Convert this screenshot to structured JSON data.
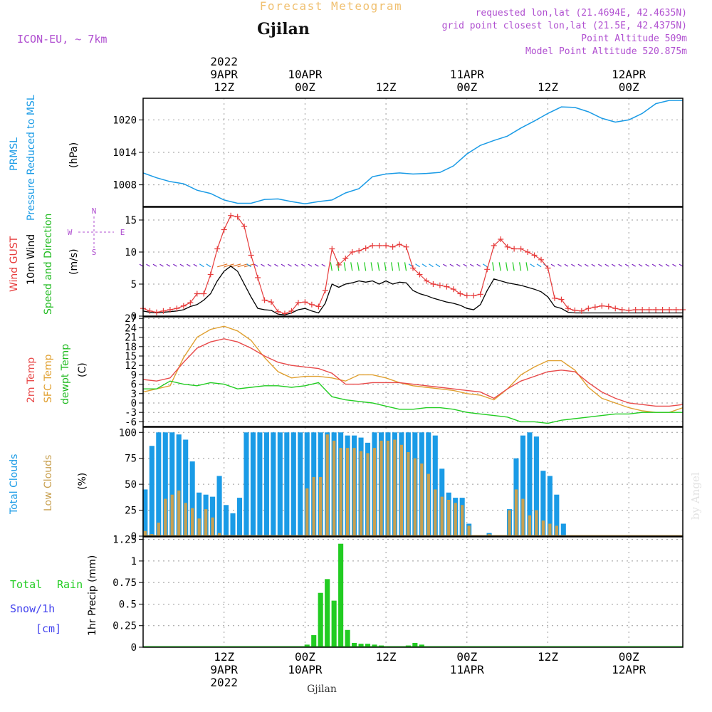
{
  "header": {
    "title": "Forecast Meteogram",
    "location": "Gjilan",
    "model": "ICON-EU, ~ 7km",
    "requested": "requested lon,lat (21.4694E, 42.4635N)",
    "gridpoint": "grid point closest lon,lat (21.5E, 42.4375N)",
    "point_altitude": "Point Altitude 509m",
    "model_altitude": "Model Point Altitude 520.875m",
    "footer_location": "Gjilan",
    "watermark": "by Angel"
  },
  "time_axis": {
    "top_ticks": [
      {
        "t": 12,
        "lines": [
          "2022",
          "9APR",
          "12Z"
        ]
      },
      {
        "t": 24,
        "lines": [
          "10APR",
          "00Z"
        ]
      },
      {
        "t": 36,
        "lines": [
          "12Z"
        ]
      },
      {
        "t": 48,
        "lines": [
          "11APR",
          "00Z"
        ]
      },
      {
        "t": 60,
        "lines": [
          "12Z"
        ]
      },
      {
        "t": 72,
        "lines": [
          "12APR",
          "00Z"
        ]
      }
    ],
    "bottom_ticks": [
      {
        "t": 12,
        "lines": [
          "12Z",
          "9APR",
          "2022"
        ]
      },
      {
        "t": 24,
        "lines": [
          "00Z",
          "10APR"
        ]
      },
      {
        "t": 36,
        "lines": [
          "12Z"
        ]
      },
      {
        "t": 48,
        "lines": [
          "00Z",
          "11APR"
        ]
      },
      {
        "t": 60,
        "lines": [
          "12Z"
        ]
      },
      {
        "t": 72,
        "lines": [
          "00Z",
          "12APR"
        ]
      }
    ]
  },
  "colors": {
    "pressure": "#1a9be6",
    "gust": "#e63b3b",
    "wind": "#000000",
    "direction_label": "#22bb22",
    "temp2m": "#e84a4a",
    "sfc": "#e0a030",
    "dewpt": "#22cc22",
    "total_clouds": "#1a9be6",
    "low_clouds": "#c8a050",
    "rain": "#22cc22",
    "snow": "#4444ee",
    "purple": "#b050d0",
    "orange_title": "#f0c070"
  },
  "panels": {
    "pressure": {
      "label1": "PRMSL",
      "label2": "Pressure Reduced to MSL",
      "unit": "(hPa)",
      "yticks": [
        "1008",
        "1014",
        "1020"
      ]
    },
    "wind": {
      "label1": "Wind GUST",
      "label2": "10m Wind",
      "label3": "Speed and Direction",
      "unit": "(m/s)",
      "yticks": [
        "0",
        "5",
        "10",
        "15"
      ],
      "compass": {
        "n": "N",
        "s": "S",
        "w": "W",
        "e": "E"
      }
    },
    "temp": {
      "label1": "2m Temp",
      "label2": "SFC Temp",
      "label3": "dewpt Temp",
      "unit": "(C)",
      "yticks": [
        "-6",
        "-3",
        "0",
        "3",
        "6",
        "9",
        "12",
        "15",
        "18",
        "21",
        "24",
        "27"
      ]
    },
    "clouds": {
      "label1": "Total Clouds",
      "label2": "Low Clouds",
      "unit": "(%)",
      "yticks": [
        "0",
        "25",
        "50",
        "75",
        "100"
      ]
    },
    "precip": {
      "label1": "Total",
      "label1b": "Rain",
      "label2": "Snow/1h",
      "label3": "[cm]",
      "unit": "1hr Precip (mm)",
      "yticks": [
        "0",
        "0.25",
        "0.5",
        "0.75",
        "1",
        "1.25"
      ]
    }
  },
  "chart_data": [
    {
      "type": "line",
      "name": "prmsl",
      "ylabel": "Pressure Reduced to MSL (hPa)",
      "ylim": [
        1004,
        1024
      ],
      "x_hours_from_9APR_00Z": [
        0,
        2,
        4,
        6,
        8,
        10,
        12,
        14,
        16,
        18,
        20,
        22,
        24,
        26,
        28,
        30,
        32,
        34,
        36,
        38,
        40,
        42,
        44,
        46,
        48,
        50,
        52,
        54,
        56,
        58,
        60,
        62,
        64,
        66,
        68,
        70,
        72,
        74,
        76,
        78,
        80
      ],
      "series": [
        {
          "values": [
            1010.2,
            1009.3,
            1008.6,
            1008.2,
            1007.0,
            1006.4,
            1005.2,
            1004.6,
            1004.6,
            1005.3,
            1005.4,
            1004.9,
            1004.5,
            1004.9,
            1005.2,
            1006.5,
            1007.3,
            1009.5,
            1010.0,
            1010.2,
            1010.0,
            1010.1,
            1010.3,
            1011.5,
            1013.7,
            1015.3,
            1016.2,
            1017.0,
            1018.5,
            1019.8,
            1021.2,
            1022.4,
            1022.3,
            1021.5,
            1020.3,
            1019.6,
            1020.0,
            1021.2,
            1023.0,
            1023.6,
            1023.6
          ]
        }
      ]
    },
    {
      "type": "line",
      "name": "wind",
      "ylabel": "(m/s)",
      "ylim": [
        0,
        17
      ],
      "x_hours_from_9APR_00Z": [
        0,
        1,
        2,
        3,
        4,
        5,
        6,
        7,
        8,
        9,
        10,
        11,
        12,
        13,
        14,
        15,
        16,
        17,
        18,
        19,
        20,
        21,
        22,
        23,
        24,
        25,
        26,
        27,
        28,
        29,
        30,
        31,
        32,
        33,
        34,
        35,
        36,
        37,
        38,
        39,
        40,
        41,
        42,
        43,
        44,
        45,
        46,
        47,
        48,
        49,
        50,
        51,
        52,
        53,
        54,
        55,
        56,
        57,
        58,
        59,
        60,
        61,
        62,
        63,
        64,
        65,
        66,
        67,
        68,
        69,
        70,
        71,
        72,
        73,
        74,
        75,
        76,
        77,
        78,
        79,
        80
      ],
      "series": [
        {
          "name": "Wind GUST",
          "values": [
            1.2,
            0.8,
            0.6,
            0.8,
            1.0,
            1.2,
            1.6,
            2.1,
            3.5,
            3.5,
            6.5,
            10.5,
            13.5,
            15.7,
            15.5,
            14.0,
            9.5,
            6.0,
            2.5,
            2.2,
            0.7,
            0.4,
            0.8,
            2.1,
            2.2,
            1.8,
            1.5,
            4.0,
            10.5,
            8.0,
            9.0,
            10.0,
            10.2,
            10.6,
            11.0,
            11.0,
            11.0,
            10.8,
            11.2,
            10.8,
            7.5,
            6.5,
            5.5,
            5.0,
            4.8,
            4.6,
            4.2,
            3.5,
            3.2,
            3.2,
            3.4,
            7.3,
            11.0,
            12.0,
            10.8,
            10.5,
            10.5,
            10.0,
            9.5,
            8.8,
            7.5,
            2.8,
            2.6,
            1.2,
            0.9,
            0.8,
            1.2,
            1.4,
            1.6,
            1.5,
            1.2,
            1.0,
            0.9,
            1.0,
            1.0,
            1.0,
            1.0,
            1.0,
            1.0,
            1.0,
            1.0
          ]
        },
        {
          "name": "10m Wind",
          "values": [
            0.8,
            0.6,
            0.5,
            0.6,
            0.7,
            0.8,
            1.0,
            1.5,
            1.8,
            2.5,
            3.5,
            5.5,
            7.0,
            7.8,
            7.0,
            5.0,
            3.0,
            1.2,
            1.0,
            0.9,
            0.3,
            0.2,
            0.5,
            1.0,
            1.2,
            0.8,
            0.5,
            2.0,
            5.0,
            4.5,
            5.0,
            5.2,
            5.5,
            5.3,
            5.5,
            5.0,
            5.5,
            5.0,
            5.3,
            5.2,
            4.0,
            3.5,
            3.2,
            2.8,
            2.5,
            2.2,
            2.0,
            1.7,
            1.2,
            1.0,
            1.8,
            4.0,
            5.8,
            5.5,
            5.2,
            5.0,
            4.8,
            4.5,
            4.2,
            3.8,
            3.0,
            1.5,
            1.2,
            0.6,
            0.5,
            0.5,
            0.5,
            0.5,
            0.5,
            0.5,
            0.5,
            0.5,
            0.5,
            0.5,
            0.5,
            0.5,
            0.5,
            0.5,
            0.5,
            0.5,
            0.5
          ]
        }
      ]
    },
    {
      "type": "line",
      "name": "temperature",
      "ylabel": "(C)",
      "ylim": [
        -7.5,
        27.5
      ],
      "x_hours_from_9APR_00Z": [
        0,
        2,
        4,
        6,
        8,
        10,
        12,
        14,
        16,
        18,
        20,
        22,
        24,
        26,
        28,
        30,
        32,
        34,
        36,
        38,
        40,
        42,
        44,
        46,
        48,
        50,
        52,
        54,
        56,
        58,
        60,
        62,
        64,
        66,
        68,
        70,
        72,
        74,
        76,
        78,
        80
      ],
      "series": [
        {
          "name": "2m Temp",
          "values": [
            7.5,
            7.0,
            8.0,
            13.0,
            17.5,
            19.5,
            20.5,
            19.5,
            17.5,
            15.0,
            13.0,
            12.0,
            11.5,
            11.0,
            9.5,
            6.0,
            6.0,
            6.5,
            6.5,
            6.5,
            6.0,
            5.5,
            5.0,
            4.5,
            4.0,
            3.5,
            1.5,
            4.5,
            7.0,
            8.5,
            10.0,
            10.5,
            10.0,
            6.5,
            3.5,
            1.5,
            0.0,
            -0.5,
            -1.0,
            -1.0,
            -0.5
          ]
        },
        {
          "name": "SFC Temp",
          "values": [
            3.5,
            4.5,
            5.5,
            14.5,
            21.0,
            23.5,
            24.5,
            23.0,
            20.0,
            14.5,
            10.0,
            8.0,
            8.5,
            8.5,
            8.0,
            7.0,
            9.0,
            9.0,
            8.0,
            6.5,
            5.5,
            5.0,
            4.5,
            4.0,
            3.0,
            2.5,
            1.0,
            4.5,
            9.0,
            11.5,
            13.5,
            13.5,
            10.5,
            5.0,
            1.5,
            0.0,
            -1.5,
            -2.5,
            -3.0,
            -3.0,
            -1.5
          ]
        },
        {
          "name": "dewpt Temp",
          "values": [
            4.5,
            4.5,
            7.0,
            6.0,
            5.5,
            6.5,
            6.0,
            4.5,
            5.0,
            5.5,
            5.5,
            5.0,
            5.5,
            6.5,
            2.0,
            1.0,
            0.5,
            0.0,
            -1.0,
            -2.0,
            -2.0,
            -1.5,
            -1.5,
            -2.0,
            -3.0,
            -3.5,
            -4.0,
            -4.5,
            -6.0,
            -6.0,
            -6.5,
            -5.5,
            -5.0,
            -4.5,
            -4.0,
            -3.5,
            -3.5,
            -3.0,
            -3.0,
            -3.0,
            -3.0
          ]
        }
      ]
    },
    {
      "type": "bar",
      "name": "clouds",
      "ylabel": "(%)",
      "ylim": [
        0,
        105
      ],
      "x_hours_from_9APR_00Z": [
        0,
        1,
        2,
        3,
        4,
        5,
        6,
        7,
        8,
        9,
        10,
        11,
        12,
        13,
        14,
        15,
        16,
        17,
        18,
        19,
        20,
        21,
        22,
        23,
        24,
        25,
        26,
        27,
        28,
        29,
        30,
        31,
        32,
        33,
        34,
        35,
        36,
        37,
        38,
        39,
        40,
        41,
        42,
        43,
        44,
        45,
        46,
        47,
        48,
        49,
        50,
        51,
        52,
        53,
        54,
        55,
        56,
        57,
        58,
        59,
        60,
        61,
        62,
        63,
        64,
        65,
        66,
        67,
        68,
        69,
        70,
        71,
        72,
        73,
        74,
        75,
        76,
        77,
        78,
        79,
        80
      ],
      "series": [
        {
          "name": "Total Clouds",
          "values": [
            45,
            87,
            100,
            100,
            100,
            98,
            93,
            72,
            42,
            40,
            38,
            58,
            30,
            22,
            37,
            100,
            100,
            100,
            100,
            100,
            100,
            100,
            100,
            100,
            100,
            100,
            100,
            100,
            100,
            100,
            97,
            97,
            95,
            90,
            100,
            100,
            100,
            100,
            100,
            100,
            100,
            100,
            100,
            97,
            65,
            42,
            37,
            37,
            12,
            0,
            0,
            3,
            0,
            0,
            26,
            75,
            97,
            100,
            96,
            63,
            58,
            40,
            12,
            0,
            0,
            0,
            0,
            0,
            0,
            0,
            0,
            0,
            0,
            0,
            0,
            0,
            0,
            0,
            0,
            0,
            0
          ]
        },
        {
          "name": "Low Clouds",
          "values": [
            5,
            2,
            13,
            36,
            40,
            44,
            32,
            27,
            17,
            26,
            18,
            3,
            0,
            0,
            0,
            0,
            0,
            0,
            0,
            0,
            0,
            0,
            0,
            0,
            46,
            57,
            57,
            98,
            92,
            85,
            85,
            85,
            82,
            80,
            85,
            92,
            92,
            93,
            88,
            81,
            75,
            70,
            60,
            45,
            38,
            35,
            32,
            30,
            10,
            0,
            0,
            2,
            0,
            0,
            25,
            45,
            36,
            20,
            25,
            15,
            12,
            10,
            0,
            0,
            0,
            0,
            0,
            0,
            0,
            0,
            0,
            0,
            0,
            0,
            0,
            0,
            0,
            0,
            0,
            0,
            0
          ]
        }
      ]
    },
    {
      "type": "bar",
      "name": "precipitation",
      "ylabel": "1hr Precip (mm)",
      "ylim": [
        0,
        1.28
      ],
      "x_hours_from_9APR_00Z": [
        24,
        25,
        26,
        27,
        28,
        29,
        30,
        31,
        32,
        33,
        34,
        35,
        36,
        37,
        38,
        39,
        40,
        41,
        42,
        43
      ],
      "series": [
        {
          "name": "Total Rain",
          "values": [
            0.03,
            0.14,
            0.63,
            0.79,
            0.54,
            1.2,
            0.2,
            0.05,
            0.04,
            0.04,
            0.03,
            0.02,
            0.01,
            0.01,
            0.01,
            0.02,
            0.05,
            0.03,
            0.01,
            0.0
          ]
        }
      ]
    }
  ]
}
